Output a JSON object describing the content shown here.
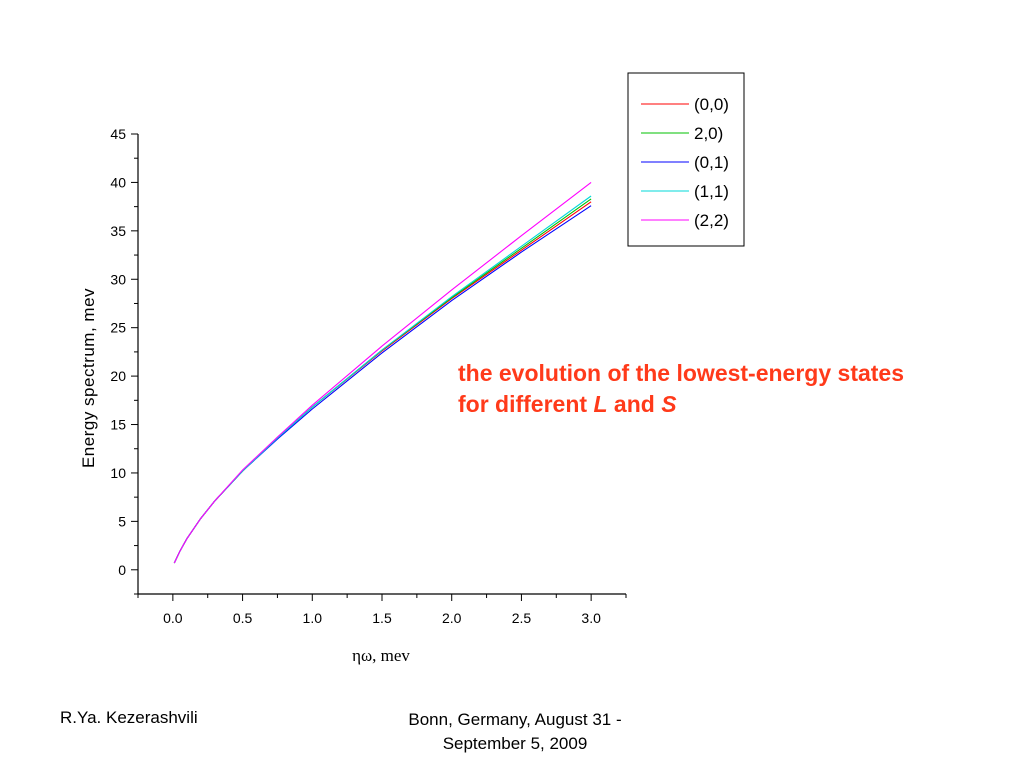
{
  "chart_data": {
    "type": "line",
    "title": "",
    "xlabel": "ηω, mev",
    "ylabel": "Energy spectrum, mev",
    "xlim": [
      -0.25,
      3.25
    ],
    "ylim": [
      -2.5,
      45
    ],
    "x_ticks": [
      "0.0",
      "0.5",
      "1.0",
      "1.5",
      "2.0",
      "2.5",
      "3.0"
    ],
    "y_ticks": [
      "0",
      "5",
      "10",
      "15",
      "20",
      "25",
      "30",
      "35",
      "40",
      "45"
    ],
    "grid": false,
    "legend_position": "top-right",
    "x": [
      0.01,
      0.05,
      0.1,
      0.2,
      0.3,
      0.5,
      0.75,
      1.0,
      1.5,
      2.0,
      2.5,
      3.0
    ],
    "series": [
      {
        "name": "(0,0)",
        "color": "#ff0000",
        "values": [
          0.7,
          1.9,
          3.2,
          5.3,
          7.1,
          10.2,
          13.6,
          16.8,
          22.6,
          28.0,
          33.0,
          38.0
        ]
      },
      {
        "name": "2,0)",
        "color": "#00c000",
        "values": [
          0.7,
          1.9,
          3.2,
          5.3,
          7.1,
          10.2,
          13.6,
          16.8,
          22.7,
          28.1,
          33.2,
          38.3
        ]
      },
      {
        "name": "(0,1)",
        "color": "#0000ff",
        "values": [
          0.7,
          1.9,
          3.2,
          5.3,
          7.1,
          10.2,
          13.5,
          16.6,
          22.4,
          27.8,
          32.8,
          37.6
        ]
      },
      {
        "name": "(1,1)",
        "color": "#00d8d8",
        "values": [
          0.7,
          1.9,
          3.2,
          5.3,
          7.1,
          10.2,
          13.6,
          16.8,
          22.7,
          28.2,
          33.4,
          38.6
        ]
      },
      {
        "name": "(2,2)",
        "color": "#ff00ff",
        "values": [
          0.7,
          1.9,
          3.2,
          5.3,
          7.1,
          10.3,
          13.7,
          17.0,
          23.1,
          28.9,
          34.5,
          40.0
        ]
      }
    ]
  },
  "annotation": {
    "line1": "the evolution of the lowest-energy states",
    "line2_prefix": "for different ",
    "var_l": "L",
    "conj": " and ",
    "var_s": "S"
  },
  "footer": {
    "author": "R.Ya. Kezerashvili",
    "venue_line1": "Bonn, Germany, August 31 -",
    "venue_line2": "September 5, 2009"
  }
}
